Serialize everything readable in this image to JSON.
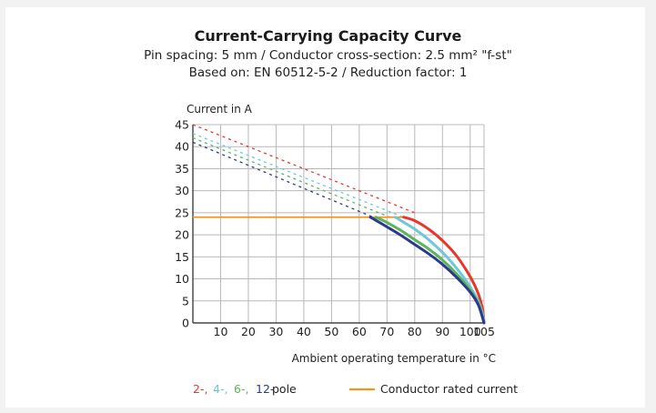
{
  "chart_data": {
    "type": "line",
    "title": "Current-Carrying Capacity Curve",
    "subtitle_lines": [
      "Pin spacing: 5 mm / Conductor cross-section: 2.5 mm² \"f-st\"",
      "Based on: EN 60512-5-2 / Reduction factor: 1"
    ],
    "ylabel": "Current in A",
    "xlabel": "Ambient operating temperature in °C",
    "xlim": [
      0,
      105
    ],
    "ylim": [
      0,
      45
    ],
    "x_ticks": [
      10,
      20,
      30,
      40,
      50,
      60,
      70,
      80,
      90,
      100,
      105
    ],
    "y_ticks": [
      0,
      5,
      10,
      15,
      20,
      25,
      30,
      35,
      40,
      45
    ],
    "grid": true,
    "rated_current": {
      "name": "Conductor rated current",
      "value": 24,
      "color": "#f7941d",
      "x_end": 76
    },
    "series": [
      {
        "name": "2",
        "color": "#e8362d",
        "dashed": [
          [
            0,
            45
          ],
          [
            80,
            25
          ]
        ],
        "solid": [
          [
            76,
            24
          ],
          [
            80,
            23.2
          ],
          [
            85,
            21.3
          ],
          [
            90,
            18.7
          ],
          [
            95,
            15.3
          ],
          [
            100,
            10.5
          ],
          [
            103,
            6.5
          ],
          [
            104.5,
            3
          ],
          [
            105,
            0
          ]
        ]
      },
      {
        "name": "4",
        "color": "#6ec8d8",
        "dashed": [
          [
            0,
            43
          ],
          [
            76,
            24
          ]
        ],
        "solid": [
          [
            73,
            24
          ],
          [
            80,
            21.3
          ],
          [
            85,
            18.9
          ],
          [
            90,
            16
          ],
          [
            95,
            12.5
          ],
          [
            100,
            8.2
          ],
          [
            103,
            4.8
          ],
          [
            104.5,
            2
          ],
          [
            105,
            0
          ]
        ]
      },
      {
        "name": "6",
        "color": "#5bb55b",
        "dashed": [
          [
            0,
            42
          ],
          [
            71,
            24
          ]
        ],
        "solid": [
          [
            66,
            24
          ],
          [
            70,
            22.8
          ],
          [
            75,
            21
          ],
          [
            80,
            18.9
          ],
          [
            85,
            16.8
          ],
          [
            90,
            14.3
          ],
          [
            95,
            11.2
          ],
          [
            100,
            7.5
          ],
          [
            103,
            4.3
          ],
          [
            105,
            0
          ]
        ]
      },
      {
        "name": "12",
        "color": "#2b3a8f",
        "dashed": [
          [
            0,
            41
          ],
          [
            65,
            24
          ]
        ],
        "solid": [
          [
            64,
            24
          ],
          [
            70,
            21.8
          ],
          [
            75,
            19.9
          ],
          [
            80,
            17.8
          ],
          [
            85,
            15.7
          ],
          [
            90,
            13.3
          ],
          [
            95,
            10.4
          ],
          [
            100,
            7
          ],
          [
            103,
            4
          ],
          [
            105,
            0
          ]
        ]
      }
    ],
    "legend": {
      "placement": "bottom",
      "pole_labels": [
        "2-,",
        "4-,",
        "6-,",
        "12-"
      ],
      "pole_suffix": "pole"
    }
  }
}
